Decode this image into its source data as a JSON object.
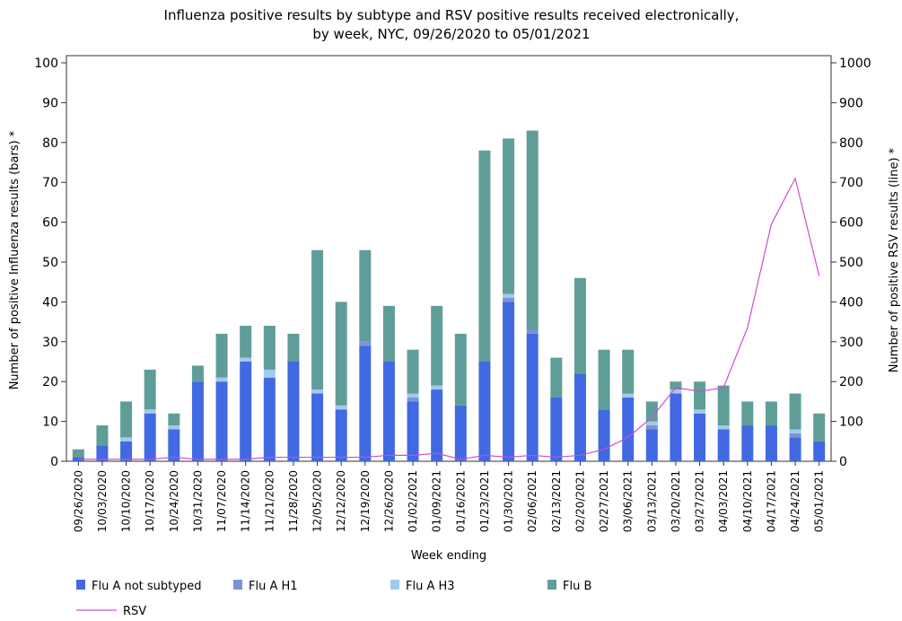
{
  "chart_data": {
    "type": "bar",
    "title": "Influenza positive results by subtype and RSV positive results received electronically,",
    "subtitle": "by week, NYC, 09/26/2020 to 05/01/2021",
    "x_label": "Week ending",
    "y_label": "Number of positive Influenza results (bars) *",
    "y2_label": "Number of positive RSV results (line) *",
    "stacked": true,
    "categories": [
      "09/26/2020",
      "10/03/2020",
      "10/10/2020",
      "10/17/2020",
      "10/24/2020",
      "10/31/2020",
      "11/07/2020",
      "11/14/2020",
      "11/21/2020",
      "11/28/2020",
      "12/05/2020",
      "12/12/2020",
      "12/19/2020",
      "12/26/2020",
      "01/02/2021",
      "01/09/2021",
      "01/16/2021",
      "01/23/2021",
      "01/30/2021",
      "02/06/2021",
      "02/13/2021",
      "02/20/2021",
      "02/27/2021",
      "03/06/2021",
      "03/13/2021",
      "03/20/2021",
      "03/27/2021",
      "04/03/2021",
      "04/10/2021",
      "04/17/2021",
      "04/24/2021",
      "05/01/2021"
    ],
    "series": [
      {
        "name": "Flu A not subtyped",
        "color": "#4169e1",
        "values": [
          1,
          4,
          5,
          12,
          8,
          20,
          20,
          25,
          21,
          25,
          17,
          13,
          29,
          25,
          15,
          18,
          14,
          25,
          40,
          32,
          16,
          22,
          13,
          16,
          8,
          17,
          12,
          8,
          9,
          9,
          6,
          5
        ]
      },
      {
        "name": "Flu A H1",
        "color": "#7b93d3",
        "values": [
          0,
          0,
          0,
          0,
          0,
          0,
          0,
          0,
          0,
          0,
          0,
          0,
          1,
          0,
          1,
          0,
          0,
          0,
          1,
          1,
          0,
          0,
          0,
          0,
          1,
          0,
          0,
          0,
          0,
          0,
          1,
          0
        ]
      },
      {
        "name": "Flu A H3",
        "color": "#a3c8ec",
        "values": [
          0,
          0,
          1,
          1,
          1,
          0,
          1,
          1,
          2,
          0,
          1,
          1,
          0,
          0,
          1,
          1,
          0,
          0,
          1,
          0,
          0,
          0,
          0,
          1,
          1,
          1,
          1,
          1,
          0,
          0,
          1,
          0
        ]
      },
      {
        "name": "Flu B",
        "color": "#5f9e98",
        "values": [
          2,
          5,
          9,
          10,
          3,
          4,
          11,
          8,
          11,
          7,
          35,
          26,
          23,
          14,
          11,
          20,
          18,
          53,
          39,
          50,
          10,
          24,
          15,
          11,
          5,
          2,
          7,
          10,
          6,
          6,
          9,
          7
        ]
      },
      {
        "name": "RSV",
        "color": "#c94fcf",
        "axis": "y2",
        "type": "line",
        "values": [
          5,
          5,
          5,
          5,
          10,
          5,
          5,
          5,
          10,
          10,
          10,
          10,
          10,
          15,
          15,
          20,
          5,
          15,
          10,
          15,
          10,
          15,
          30,
          60,
          110,
          185,
          175,
          185,
          335,
          595,
          710,
          465
        ]
      }
    ],
    "ylim": [
      0,
      100
    ],
    "yticks": [
      0,
      10,
      20,
      30,
      40,
      50,
      60,
      70,
      80,
      90,
      100
    ],
    "y2lim": [
      0,
      1000
    ],
    "y2ticks": [
      0,
      100,
      200,
      300,
      400,
      500,
      600,
      700,
      800,
      900,
      1000
    ]
  }
}
